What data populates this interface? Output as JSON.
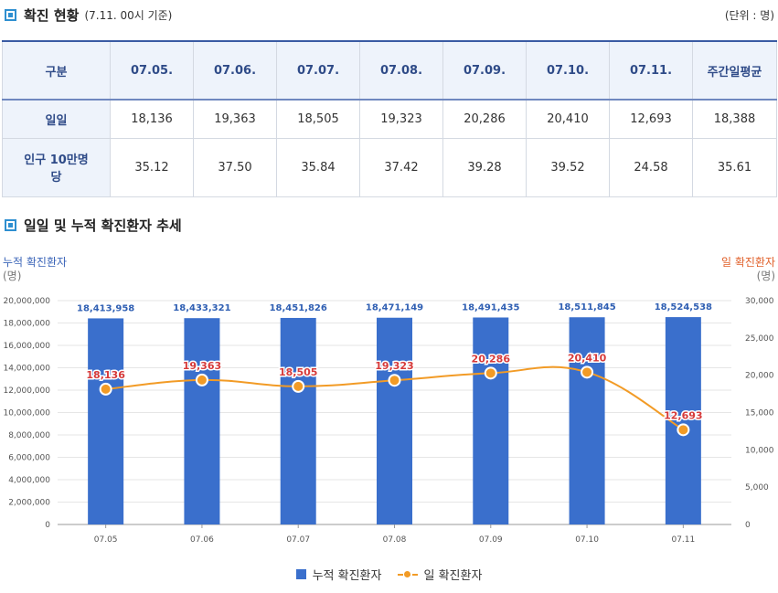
{
  "section1": {
    "title": "확진 현황",
    "subtitle": "(7.11. 00시 기준)",
    "unit": "(단위 : 명)"
  },
  "table": {
    "headers": [
      "구분",
      "07.05.",
      "07.06.",
      "07.07.",
      "07.08.",
      "07.09.",
      "07.10.",
      "07.11.",
      "주간일평균"
    ],
    "rows": [
      {
        "label": "일일",
        "values": [
          "18,136",
          "19,363",
          "18,505",
          "19,323",
          "20,286",
          "20,410",
          "12,693",
          "18,388"
        ]
      },
      {
        "label": "인구 10만명당",
        "values": [
          "35.12",
          "37.50",
          "35.84",
          "37.42",
          "39.28",
          "39.52",
          "24.58",
          "35.61"
        ]
      }
    ]
  },
  "section2": {
    "title": "일일 및 누적 확진환자 추세"
  },
  "chart_data": {
    "type": "bar",
    "categories": [
      "07.05",
      "07.06",
      "07.07",
      "07.08",
      "07.09",
      "07.10",
      "07.11"
    ],
    "series": [
      {
        "name": "누적 확진환자",
        "type": "bar",
        "axis": "left",
        "color": "#3a6fcc",
        "values": [
          18413958,
          18433321,
          18451826,
          18471149,
          18491435,
          18511845,
          18524538
        ],
        "labels": [
          "18,413,958",
          "18,433,321",
          "18,451,826",
          "18,471,149",
          "18,491,435",
          "18,511,845",
          "18,524,538"
        ]
      },
      {
        "name": "일 확진환자",
        "type": "line",
        "axis": "right",
        "color": "#f29b26",
        "values": [
          18136,
          19363,
          18505,
          19323,
          20286,
          20410,
          12693
        ],
        "labels": [
          "18,136",
          "19,363",
          "18,505",
          "19,323",
          "20,286",
          "20,410",
          "12,693"
        ]
      }
    ],
    "y_left": {
      "label": "누적 확진환자",
      "unit": "(명)",
      "min": 0,
      "max": 20000000,
      "step": 2000000,
      "ticks": [
        "0",
        "2,000,000",
        "4,000,000",
        "6,000,000",
        "8,000,000",
        "10,000,000",
        "12,000,000",
        "14,000,000",
        "16,000,000",
        "18,000,000",
        "20,000,000"
      ]
    },
    "y_right": {
      "label": "일 확진환자",
      "unit": "(명)",
      "min": 0,
      "max": 30000,
      "step": 5000,
      "ticks": [
        "0",
        "5,000",
        "10,000",
        "15,000",
        "20,000",
        "25,000",
        "30,000"
      ]
    },
    "grid": true,
    "legend": "bottom-center",
    "label_color": "#d63a3a"
  }
}
